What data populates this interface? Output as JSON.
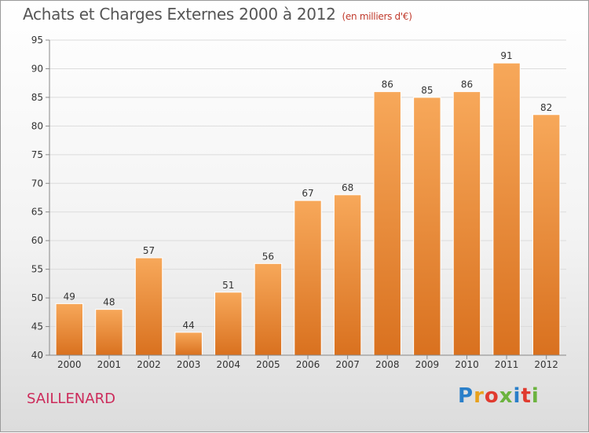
{
  "chart_data": {
    "type": "bar",
    "title": "Achats et Charges Externes 2000 à 2012",
    "subtitle": "(en milliers d'€)",
    "categories": [
      "2000",
      "2001",
      "2002",
      "2003",
      "2004",
      "2005",
      "2006",
      "2007",
      "2008",
      "2009",
      "2010",
      "2011",
      "2012"
    ],
    "values": [
      49,
      48,
      57,
      44,
      51,
      56,
      67,
      68,
      86,
      85,
      86,
      91,
      82
    ],
    "ylim": [
      40,
      95
    ],
    "yticks": [
      40,
      45,
      50,
      55,
      60,
      65,
      70,
      75,
      80,
      85,
      90,
      95
    ],
    "grid": true,
    "bar_color_top": "#f7a85a",
    "bar_color_bottom": "#d9711f"
  },
  "footer": {
    "commune": "SAILLENARD",
    "logo_text": "Proxiti"
  }
}
